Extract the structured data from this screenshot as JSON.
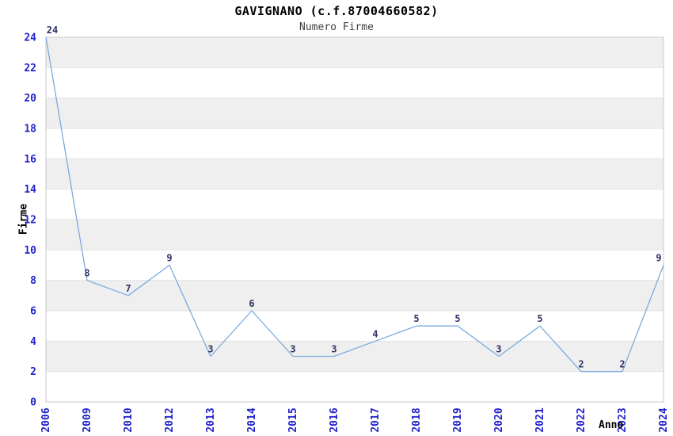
{
  "chart_data": {
    "type": "line",
    "title": "GAVIGNANO (c.f.87004660582)",
    "subtitle": "Numero Firme",
    "xlabel": "Anno",
    "ylabel": "Firme",
    "categories": [
      "2006",
      "2009",
      "2010",
      "2012",
      "2013",
      "2014",
      "2015",
      "2016",
      "2017",
      "2018",
      "2019",
      "2020",
      "2021",
      "2022",
      "2023",
      "2024"
    ],
    "values": [
      24,
      8,
      7,
      9,
      3,
      6,
      3,
      3,
      4,
      5,
      5,
      3,
      5,
      2,
      2,
      9
    ],
    "point_labels": [
      "24",
      "8",
      "7",
      "9",
      "3",
      "6",
      "3",
      "3",
      "4",
      "5",
      "5",
      "3",
      "5",
      "2",
      "2",
      "9"
    ],
    "ylim": [
      0,
      24
    ],
    "ytick_step": 2,
    "ytick_labels": [
      "0",
      "2",
      "4",
      "6",
      "8",
      "10",
      "12",
      "14",
      "16",
      "18",
      "20",
      "22",
      "24"
    ],
    "grid": "alternating-horizontal-bands",
    "legend": "none",
    "markers": "none",
    "colors": {
      "line": "#7aabdf",
      "tick_label": "#2222cc",
      "point_label": "#333366",
      "band": "#efefef",
      "plot_border": "#c8c8c8",
      "gridline": "#e2e2e2",
      "title": "#000000",
      "subtitle": "#404040",
      "axis_label": "#000000",
      "background": "#ffffff"
    }
  }
}
